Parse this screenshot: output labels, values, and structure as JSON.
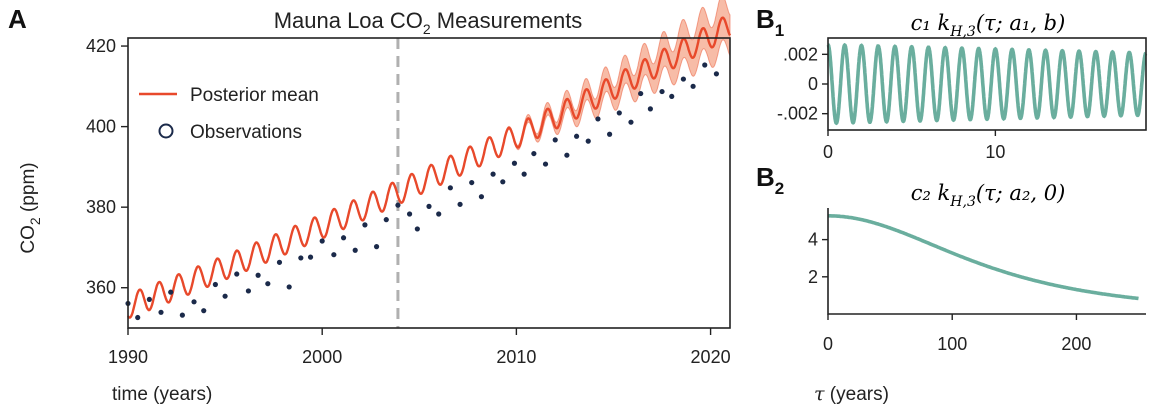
{
  "panels": {
    "a": {
      "letter": "A"
    },
    "b1": {
      "letter": "B",
      "subscript": "1"
    },
    "b2": {
      "letter": "B",
      "subscript": "2"
    }
  },
  "chart_data": [
    {
      "id": "A",
      "type": "line",
      "title": "Mauna Loa CO",
      "title_sub": "2",
      "title_tail": " Measurements",
      "xlabel": "time (years)",
      "ylabel": "CO",
      "ylabel_sub": "2",
      "ylabel_tail": " (ppm)",
      "xlim": [
        1990,
        2021
      ],
      "ylim": [
        350,
        422
      ],
      "xticks": [
        1990,
        2000,
        2010,
        2020
      ],
      "yticks": [
        360,
        380,
        400,
        420
      ],
      "legend_position": "upper-left",
      "grid": false,
      "vline": {
        "x": 2003.9,
        "style": "dashed",
        "color": "#b0b0b0"
      },
      "colors": {
        "mean": "#e8492b",
        "band": "#f4a58a",
        "points": "#1b2a4a"
      },
      "series": [
        {
          "name": "Posterior mean",
          "kind": "line",
          "model": {
            "base": 355.4,
            "slope": 1.86,
            "quad": 0.0125,
            "t0": 1990,
            "seasonal_amplitude": 3.0,
            "seasonal_phase": 0.35
          },
          "uncertainty": {
            "start": 2009.0,
            "growth_per_year": 0.42,
            "max": 5.0,
            "ripple": 1.1
          }
        },
        {
          "name": "Observations",
          "kind": "scatter",
          "points": [
            [
              1990.0,
              356.1
            ],
            [
              1990.5,
              352.6
            ],
            [
              1991.1,
              357.1
            ],
            [
              1991.7,
              353.9
            ],
            [
              1992.2,
              358.9
            ],
            [
              1992.8,
              353.2
            ],
            [
              1993.4,
              356.5
            ],
            [
              1993.9,
              354.3
            ],
            [
              1994.5,
              360.8
            ],
            [
              1995.0,
              357.9
            ],
            [
              1995.6,
              363.4
            ],
            [
              1996.2,
              359.2
            ],
            [
              1996.7,
              363.1
            ],
            [
              1997.2,
              361.0
            ],
            [
              1997.8,
              366.3
            ],
            [
              1998.3,
              360.2
            ],
            [
              1998.9,
              367.4
            ],
            [
              1999.4,
              367.6
            ],
            [
              2000.0,
              371.6
            ],
            [
              2000.6,
              368.2
            ],
            [
              2001.1,
              372.4
            ],
            [
              2001.7,
              369.3
            ],
            [
              2002.2,
              375.6
            ],
            [
              2002.8,
              370.2
            ],
            [
              2003.3,
              376.9
            ],
            [
              2003.9,
              380.5
            ],
            [
              2004.5,
              378.3
            ],
            [
              2004.9,
              374.6
            ],
            [
              2005.5,
              380.2
            ],
            [
              2006.0,
              378.3
            ],
            [
              2006.6,
              384.8
            ],
            [
              2007.1,
              380.7
            ],
            [
              2007.7,
              386.1
            ],
            [
              2008.2,
              382.6
            ],
            [
              2008.8,
              388.2
            ],
            [
              2009.3,
              386.3
            ],
            [
              2009.9,
              390.9
            ],
            [
              2010.4,
              388.2
            ],
            [
              2010.9,
              393.3
            ],
            [
              2011.5,
              390.7
            ],
            [
              2012.0,
              396.7
            ],
            [
              2012.6,
              392.9
            ],
            [
              2013.1,
              397.6
            ],
            [
              2013.7,
              396.4
            ],
            [
              2014.2,
              401.9
            ],
            [
              2014.8,
              398.1
            ],
            [
              2015.3,
              403.4
            ],
            [
              2015.9,
              401.1
            ],
            [
              2016.4,
              408.2
            ],
            [
              2016.9,
              404.4
            ],
            [
              2017.5,
              408.7
            ],
            [
              2018.0,
              407.5
            ],
            [
              2018.6,
              411.8
            ],
            [
              2019.1,
              410.0
            ],
            [
              2019.7,
              415.3
            ],
            [
              2020.3,
              413.1
            ]
          ]
        }
      ]
    },
    {
      "id": "B1",
      "type": "line",
      "title_math": "c₁ k",
      "title_sub": "H,3",
      "title_tail": "(τ; a₁, b)",
      "xlim": [
        0,
        19
      ],
      "ylim": [
        -0.0031,
        0.0031
      ],
      "xticks": [
        0,
        10
      ],
      "yticks": [
        0.002,
        0,
        -0.002
      ],
      "ytick_labels": [
        ".002",
        "0",
        "-.002"
      ],
      "color": "#6aae9e",
      "model": {
        "amplitude": 0.00265,
        "period": 1.0,
        "decay_per_unit": 0.011
      }
    },
    {
      "id": "B2",
      "type": "line",
      "title_math": "c₂ k",
      "title_sub": "H,3",
      "title_tail": "(τ; a₂, 0)",
      "xlabel_math": "τ",
      "xlabel_tail": " (years)",
      "xlim": [
        0,
        256
      ],
      "ylim": [
        0.0,
        5.7
      ],
      "xticks": [
        0,
        100,
        200
      ],
      "yticks": [
        2,
        4
      ],
      "color": "#6aae9e",
      "model": {
        "peak": 5.28,
        "scale": 95.0,
        "tau_max": 250
      }
    }
  ]
}
